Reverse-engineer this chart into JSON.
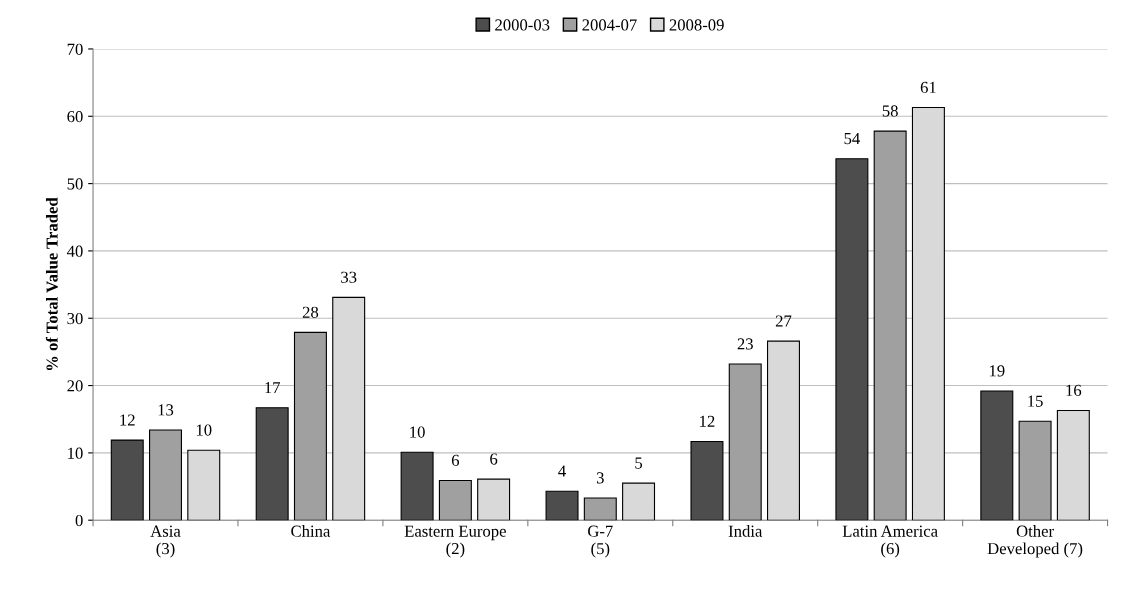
{
  "chart_data": {
    "type": "bar",
    "ylabel": "% of Total Value Traded",
    "categories": [
      "Asia\n(3)",
      "China",
      "Eastern Europe\n(2)",
      "G-7\n(5)",
      "India",
      "Latin America\n(6)",
      "Other\nDeveloped (7)"
    ],
    "series": [
      {
        "name": "2000-03",
        "color": "#4d4d4d",
        "values": [
          11.9,
          16.7,
          10.1,
          4.3,
          11.7,
          53.7,
          19.2
        ],
        "value_labels": [
          "12",
          "17",
          "10",
          "4",
          "12",
          "54",
          "19"
        ]
      },
      {
        "name": "2004-07",
        "color": "#a0a0a0",
        "values": [
          13.4,
          27.9,
          5.9,
          3.3,
          23.2,
          57.8,
          14.7
        ],
        "value_labels": [
          "13",
          "28",
          "6",
          "3",
          "23",
          "58",
          "15"
        ]
      },
      {
        "name": "2008-09",
        "color": "#d9d9d9",
        "values": [
          10.4,
          33.1,
          6.1,
          5.5,
          26.6,
          61.3,
          16.3
        ],
        "value_labels": [
          "10",
          "33",
          "6",
          "5",
          "27",
          "61",
          "16"
        ]
      }
    ],
    "ylim": [
      0,
      70
    ],
    "yticks": [
      0,
      10,
      20,
      30,
      40,
      50,
      60,
      70
    ],
    "grid": "y",
    "legend": "top"
  }
}
